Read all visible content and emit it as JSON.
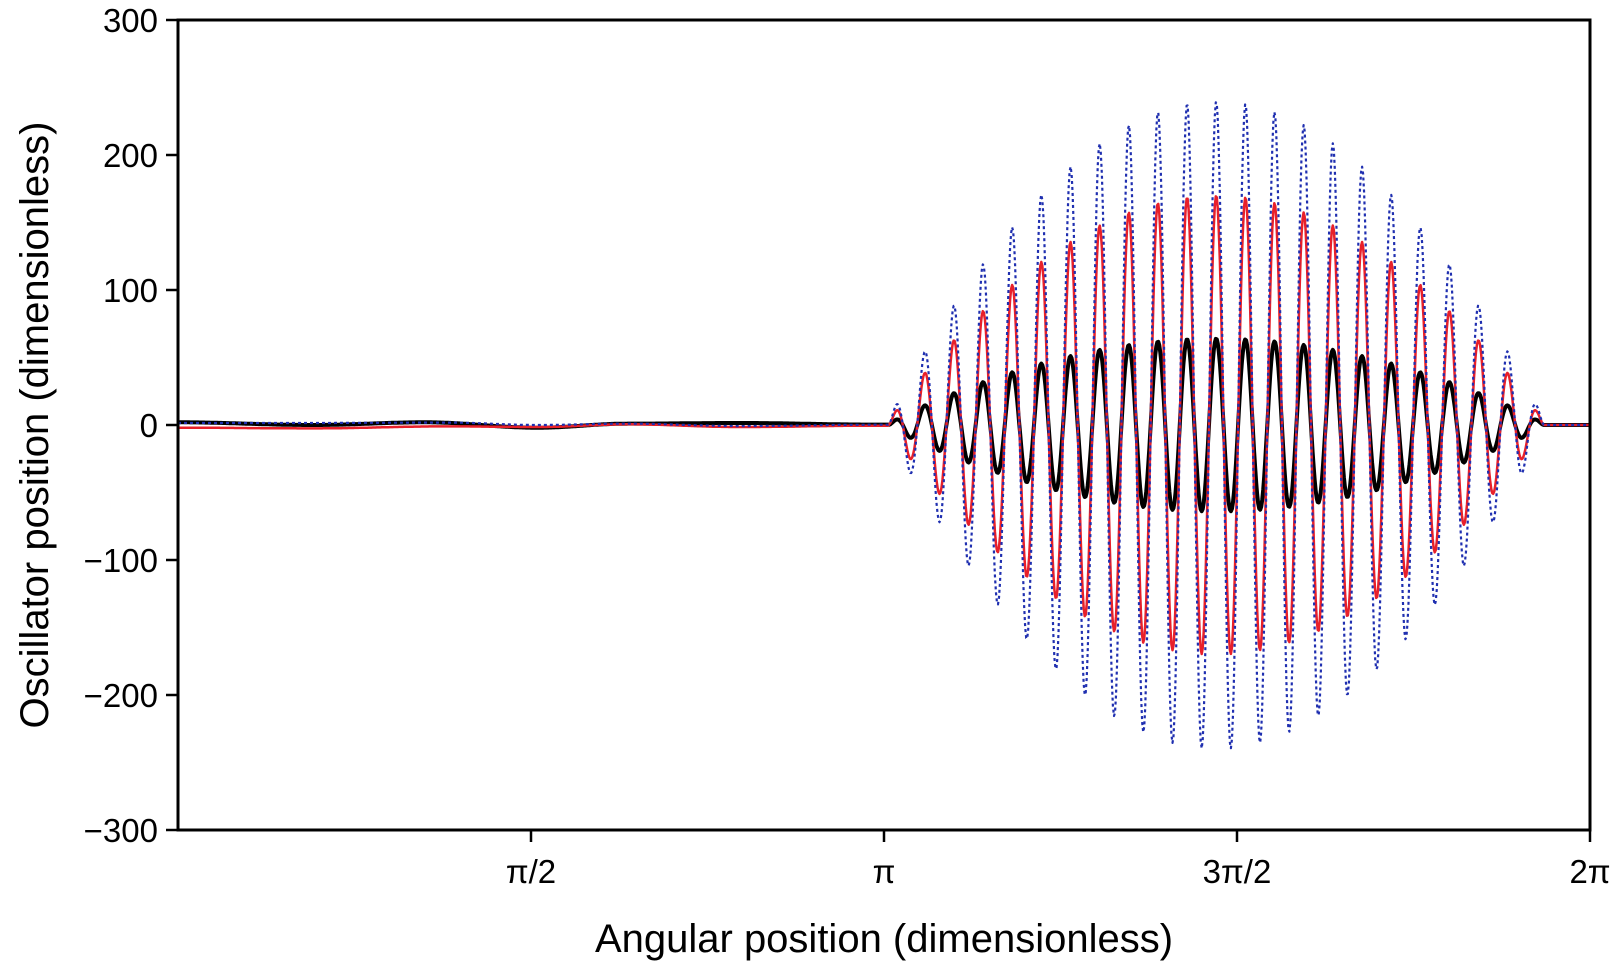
{
  "chart_data": {
    "type": "line",
    "title": "",
    "xlabel": "Angular position (dimensionless)",
    "ylabel": "Oscillator position (dimensionless)",
    "xlim": [
      0,
      6.283185307
    ],
    "ylim": [
      -300,
      300
    ],
    "grid": false,
    "legend": "none",
    "x_ticks": [
      {
        "value": 1.570796327,
        "label": "π/2"
      },
      {
        "value": 3.141592654,
        "label": "π"
      },
      {
        "value": 4.71238898,
        "label": "3π/2"
      },
      {
        "value": 6.283185307,
        "label": "2π"
      }
    ],
    "y_ticks": [
      {
        "value": 300,
        "label": "300"
      },
      {
        "value": 200,
        "label": "200"
      },
      {
        "value": 100,
        "label": "100"
      },
      {
        "value": 0,
        "label": "0"
      },
      {
        "value": -100,
        "label": "−100"
      },
      {
        "value": -200,
        "label": "−200"
      },
      {
        "value": -300,
        "label": "−300"
      }
    ],
    "oscillation": {
      "x_start": 3.16,
      "x_end": 6.08,
      "cycles": 22.5
    },
    "series": [
      {
        "style": "dotted",
        "color": "#1f2fb0",
        "peak_amplitude": 240,
        "flat_part": [
          [
            0,
            1.5
          ],
          [
            0.6,
            1.5
          ],
          [
            1.2,
            1.8
          ],
          [
            1.6,
            0
          ],
          [
            2.0,
            1.0
          ],
          [
            2.5,
            -0.8
          ],
          [
            3.1,
            0.2
          ]
        ]
      },
      {
        "style": "solid",
        "color": "#e8202a",
        "peak_amplitude": 170,
        "flat_part": [
          [
            0,
            -2
          ],
          [
            0.6,
            -2.5
          ],
          [
            1.2,
            -1
          ],
          [
            1.6,
            -1.5
          ],
          [
            2.0,
            0.5
          ],
          [
            2.5,
            -1.5
          ],
          [
            3.1,
            -0.5
          ]
        ]
      },
      {
        "style": "solid",
        "color": "#000000",
        "peak_amplitude": 64,
        "flat_part": [
          [
            0,
            2
          ],
          [
            0.6,
            0
          ],
          [
            1.1,
            2
          ],
          [
            1.6,
            -2
          ],
          [
            2.0,
            1
          ],
          [
            2.5,
            1.5
          ],
          [
            3.1,
            0.3
          ]
        ]
      }
    ]
  }
}
